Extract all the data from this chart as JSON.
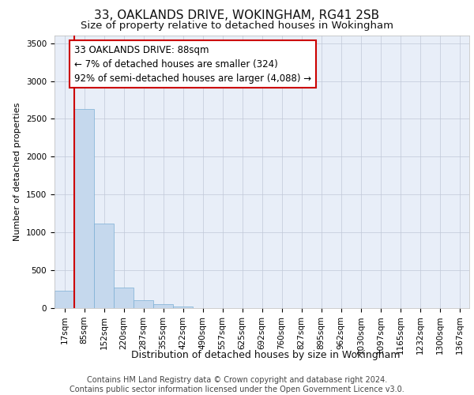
{
  "title1": "33, OAKLANDS DRIVE, WOKINGHAM, RG41 2SB",
  "title2": "Size of property relative to detached houses in Wokingham",
  "xlabel": "Distribution of detached houses by size in Wokingham",
  "ylabel": "Number of detached properties",
  "annotation_title": "33 OAKLANDS DRIVE: 88sqm",
  "annotation_line2": "← 7% of detached houses are smaller (324)",
  "annotation_line3": "92% of semi-detached houses are larger (4,088) →",
  "footer1": "Contains HM Land Registry data © Crown copyright and database right 2024.",
  "footer2": "Contains public sector information licensed under the Open Government Licence v3.0.",
  "bar_color": "#c5d8ed",
  "bar_edge_color": "#7bafd4",
  "highlight_line_color": "#cc0000",
  "annotation_box_color": "#cc0000",
  "background_color": "#e8eef8",
  "tick_labels": [
    "17sqm",
    "85sqm",
    "152sqm",
    "220sqm",
    "287sqm",
    "355sqm",
    "422sqm",
    "490sqm",
    "557sqm",
    "625sqm",
    "692sqm",
    "760sqm",
    "827sqm",
    "895sqm",
    "962sqm",
    "1030sqm",
    "1097sqm",
    "1165sqm",
    "1232sqm",
    "1300sqm",
    "1367sqm"
  ],
  "bar_values": [
    230,
    2630,
    1120,
    270,
    100,
    50,
    20,
    0,
    0,
    0,
    0,
    0,
    0,
    0,
    0,
    0,
    0,
    0,
    0,
    0,
    0
  ],
  "ylim": [
    0,
    3600
  ],
  "yticks": [
    0,
    500,
    1000,
    1500,
    2000,
    2500,
    3000,
    3500
  ],
  "title1_fontsize": 11,
  "title2_fontsize": 9.5,
  "xlabel_fontsize": 9,
  "ylabel_fontsize": 8,
  "tick_fontsize": 7.5,
  "annotation_fontsize": 8.5,
  "footer_fontsize": 7
}
